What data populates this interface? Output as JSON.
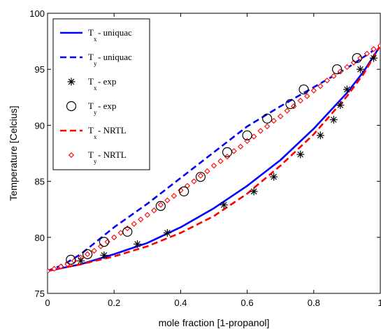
{
  "chart_data": {
    "type": "line",
    "xlabel": "mole fraction [1-propanol]",
    "ylabel": "Temperature [Celcius]",
    "xlim": [
      0,
      1
    ],
    "ylim": [
      75,
      100
    ],
    "x_ticks": [
      "0",
      "0.2",
      "0.4",
      "0.6",
      "0.8",
      "1"
    ],
    "y_ticks": [
      "75",
      "80",
      "85",
      "90",
      "95",
      "100"
    ],
    "grid": false,
    "legend_position": "top-left",
    "series": [
      {
        "name_main": "T",
        "name_sub": "x",
        "name_rest": " - uniquac",
        "style": "solid-line",
        "color": "#0000ff",
        "x": [
          0,
          0.05,
          0.1,
          0.2,
          0.3,
          0.4,
          0.5,
          0.6,
          0.7,
          0.8,
          0.9,
          0.95,
          1.0
        ],
        "y": [
          77.0,
          77.3,
          77.6,
          78.5,
          79.5,
          80.9,
          82.6,
          84.6,
          86.9,
          89.7,
          92.9,
          94.8,
          97.1
        ]
      },
      {
        "name_main": "T",
        "name_sub": "y",
        "name_rest": " - uniquac",
        "style": "dashed-line",
        "color": "#0000ff",
        "x": [
          0,
          0.05,
          0.1,
          0.2,
          0.3,
          0.4,
          0.5,
          0.6,
          0.7,
          0.8,
          0.9,
          0.95,
          1.0
        ],
        "y": [
          77.0,
          77.6,
          78.5,
          80.9,
          83.0,
          85.3,
          87.6,
          89.9,
          91.7,
          93.4,
          95.1,
          96.1,
          97.1
        ]
      },
      {
        "name_main": "T",
        "name_sub": "x",
        "name_rest": " - exp",
        "style": "asterisk-marker",
        "color": "#000000",
        "x": [
          0.1,
          0.17,
          0.27,
          0.36,
          0.53,
          0.62,
          0.68,
          0.76,
          0.82,
          0.86,
          0.88,
          0.9,
          0.94,
          0.98
        ],
        "y": [
          77.9,
          78.4,
          79.4,
          80.4,
          82.9,
          84.1,
          85.4,
          87.4,
          89.1,
          90.5,
          91.8,
          93.2,
          95.0,
          96.0
        ]
      },
      {
        "name_main": "T",
        "name_sub": "y",
        "name_rest": " - exp",
        "style": "circle-marker",
        "color": "#000000",
        "x": [
          0.07,
          0.12,
          0.17,
          0.24,
          0.34,
          0.41,
          0.46,
          0.54,
          0.6,
          0.66,
          0.73,
          0.77,
          0.87,
          0.93
        ],
        "y": [
          78.0,
          78.5,
          79.6,
          80.5,
          82.8,
          84.1,
          85.4,
          87.6,
          89.1,
          90.6,
          91.9,
          93.2,
          95.0,
          96.0
        ]
      },
      {
        "name_main": "T",
        "name_sub": "x",
        "name_rest": " - NRTL",
        "style": "dashed-line",
        "color": "#ff0000",
        "x": [
          0,
          0.05,
          0.1,
          0.2,
          0.3,
          0.4,
          0.5,
          0.6,
          0.7,
          0.8,
          0.9,
          0.95,
          1.0
        ],
        "y": [
          77.0,
          77.3,
          77.6,
          78.3,
          79.2,
          80.4,
          81.9,
          83.9,
          86.4,
          89.2,
          92.6,
          94.6,
          97.1
        ]
      },
      {
        "name_main": "T",
        "name_sub": "y",
        "name_rest": " - NRTL",
        "style": "diamond-marker",
        "color": "#ff0000",
        "x": [
          0,
          0.02,
          0.04,
          0.06,
          0.08,
          0.1,
          0.12,
          0.14,
          0.16,
          0.18,
          0.2,
          0.22,
          0.24,
          0.26,
          0.28,
          0.3,
          0.32,
          0.34,
          0.36,
          0.38,
          0.4,
          0.42,
          0.44,
          0.46,
          0.48,
          0.5,
          0.52,
          0.54,
          0.56,
          0.58,
          0.6,
          0.62,
          0.64,
          0.66,
          0.68,
          0.7,
          0.72,
          0.74,
          0.76,
          0.78,
          0.8,
          0.82,
          0.84,
          0.86,
          0.88,
          0.9,
          0.92,
          0.94,
          0.96,
          0.98,
          1.0
        ],
        "y": [
          77.0,
          77.2,
          77.4,
          77.6,
          77.9,
          78.2,
          78.5,
          78.8,
          79.2,
          79.6,
          80.0,
          80.4,
          80.8,
          81.2,
          81.6,
          82.0,
          82.4,
          82.9,
          83.3,
          83.7,
          84.2,
          84.6,
          85.0,
          85.5,
          85.9,
          86.4,
          86.8,
          87.2,
          87.7,
          88.1,
          88.6,
          89.0,
          89.5,
          89.9,
          90.4,
          90.8,
          91.3,
          91.7,
          92.2,
          92.6,
          93.1,
          93.5,
          94.0,
          94.4,
          94.8,
          95.2,
          95.6,
          96.0,
          96.4,
          96.8,
          97.1
        ]
      }
    ]
  }
}
